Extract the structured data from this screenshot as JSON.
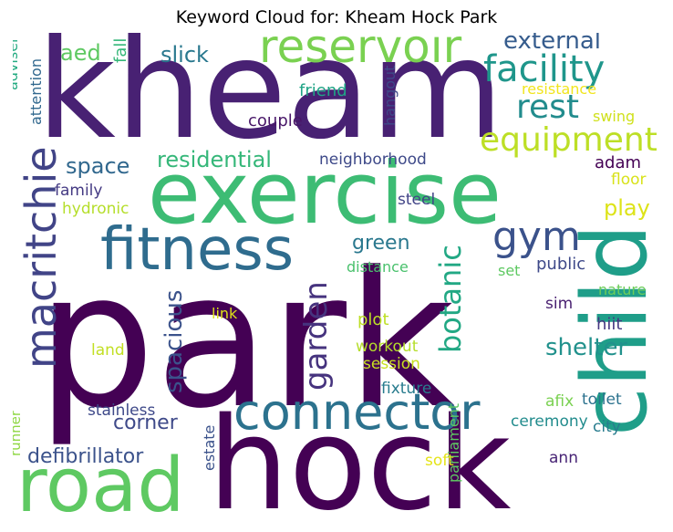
{
  "title": "Keyword Cloud for: Kheam Hock Park",
  "words": [
    {
      "text": "park",
      "color": "#440154"
    },
    {
      "text": "hock",
      "color": "#440154"
    },
    {
      "text": "kheam",
      "color": "#482173"
    },
    {
      "text": "exercise",
      "color": "#3dbc74"
    },
    {
      "text": "child",
      "color": "#1f9e89"
    },
    {
      "text": "road",
      "color": "#5ec962"
    },
    {
      "text": "fitness",
      "color": "#2f6c8e"
    },
    {
      "text": "connector",
      "color": "#2c728e"
    },
    {
      "text": "reservoir",
      "color": "#7ad151"
    },
    {
      "text": "macritchie",
      "color": "#414487"
    },
    {
      "text": "facility",
      "color": "#1f968b"
    },
    {
      "text": "equipment",
      "color": "#bddf26"
    },
    {
      "text": "gym",
      "color": "#3b528b"
    },
    {
      "text": "rest",
      "color": "#228c8d"
    },
    {
      "text": "botanic",
      "color": "#22a884"
    },
    {
      "text": "garden",
      "color": "#46337e"
    },
    {
      "text": "spacious",
      "color": "#3b528b"
    },
    {
      "text": "shelter",
      "color": "#21918c"
    },
    {
      "text": "residential",
      "color": "#35b779"
    },
    {
      "text": "space",
      "color": "#31688e"
    },
    {
      "text": "external",
      "color": "#365c8d"
    },
    {
      "text": "slick",
      "color": "#29788e"
    },
    {
      "text": "aed",
      "color": "#5ec962"
    },
    {
      "text": "fall",
      "color": "#35b779"
    },
    {
      "text": "green",
      "color": "#2a788e"
    },
    {
      "text": "corner",
      "color": "#3e4989"
    },
    {
      "text": "defibrillator",
      "color": "#3b528b"
    },
    {
      "text": "play",
      "color": "#dde318"
    },
    {
      "text": "adviser",
      "color": "#25ab82"
    },
    {
      "text": "attention",
      "color": "#31688e"
    },
    {
      "text": "friend",
      "color": "#20a486"
    },
    {
      "text": "couple",
      "color": "#481668"
    },
    {
      "text": "hangout",
      "color": "#3e4989"
    },
    {
      "text": "resistance",
      "color": "#f1e51d"
    },
    {
      "text": "swing",
      "color": "#d0e11c"
    },
    {
      "text": "neighborhood",
      "color": "#3e4989"
    },
    {
      "text": "adam",
      "color": "#440154"
    },
    {
      "text": "family",
      "color": "#443a83"
    },
    {
      "text": "steel",
      "color": "#414487"
    },
    {
      "text": "floor",
      "color": "#d8e219"
    },
    {
      "text": "hydronic",
      "color": "#b5de2b"
    },
    {
      "text": "distance",
      "color": "#4ac16d"
    },
    {
      "text": "public",
      "color": "#3e4989"
    },
    {
      "text": "set",
      "color": "#5ec962"
    },
    {
      "text": "nature",
      "color": "#6ccd5a"
    },
    {
      "text": "link",
      "color": "#dde318"
    },
    {
      "text": "plot",
      "color": "#bddf26"
    },
    {
      "text": "sim",
      "color": "#481f70"
    },
    {
      "text": "hiit",
      "color": "#453781"
    },
    {
      "text": "land",
      "color": "#c2df23"
    },
    {
      "text": "workout",
      "color": "#b5de2b"
    },
    {
      "text": "session",
      "color": "#c8e020"
    },
    {
      "text": "fixture",
      "color": "#287c8e"
    },
    {
      "text": "afix",
      "color": "#7ad151"
    },
    {
      "text": "toilet",
      "color": "#2c728e"
    },
    {
      "text": "stainless",
      "color": "#3e4989"
    },
    {
      "text": "ceremony",
      "color": "#228c8d"
    },
    {
      "text": "city",
      "color": "#287c8e"
    },
    {
      "text": "runner",
      "color": "#8fd744"
    },
    {
      "text": "estate",
      "color": "#3b528b"
    },
    {
      "text": "parliament",
      "color": "#5ec962"
    },
    {
      "text": "soft",
      "color": "#e5e419"
    },
    {
      "text": "ann",
      "color": "#482475"
    }
  ]
}
